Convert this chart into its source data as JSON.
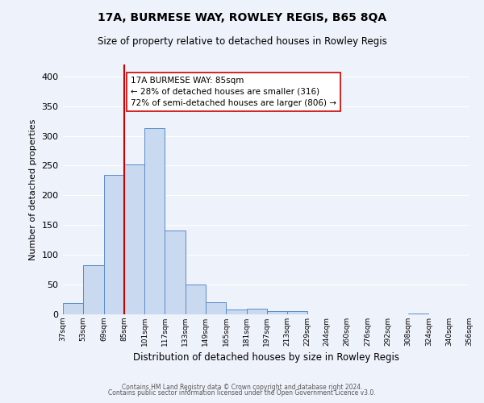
{
  "title": "17A, BURMESE WAY, ROWLEY REGIS, B65 8QA",
  "subtitle": "Size of property relative to detached houses in Rowley Regis",
  "xlabel": "Distribution of detached houses by size in Rowley Regis",
  "ylabel": "Number of detached properties",
  "bin_labels": [
    "37sqm",
    "53sqm",
    "69sqm",
    "85sqm",
    "101sqm",
    "117sqm",
    "133sqm",
    "149sqm",
    "165sqm",
    "181sqm",
    "197sqm",
    "213sqm",
    "229sqm",
    "244sqm",
    "260sqm",
    "276sqm",
    "292sqm",
    "308sqm",
    "324sqm",
    "340sqm",
    "356sqm"
  ],
  "bin_edges": [
    37,
    53,
    69,
    85,
    101,
    117,
    133,
    149,
    165,
    181,
    197,
    213,
    229,
    244,
    260,
    276,
    292,
    308,
    324,
    340,
    356
  ],
  "bar_values": [
    19,
    83,
    235,
    252,
    313,
    141,
    50,
    20,
    8,
    10,
    5,
    5,
    0,
    0,
    0,
    0,
    0,
    2,
    0,
    0
  ],
  "bar_color": "#c9d9f0",
  "bar_edge_color": "#5b8bc9",
  "vline_x": 85,
  "vline_color": "#cc0000",
  "annotation_title": "17A BURMESE WAY: 85sqm",
  "annotation_line1": "← 28% of detached houses are smaller (316)",
  "annotation_line2": "72% of semi-detached houses are larger (806) →",
  "ylim": [
    0,
    420
  ],
  "yticks": [
    0,
    50,
    100,
    150,
    200,
    250,
    300,
    350,
    400
  ],
  "bg_color": "#eef2fa",
  "grid_color": "#ffffff",
  "footer1": "Contains HM Land Registry data © Crown copyright and database right 2024.",
  "footer2": "Contains public sector information licensed under the Open Government Licence v3.0."
}
